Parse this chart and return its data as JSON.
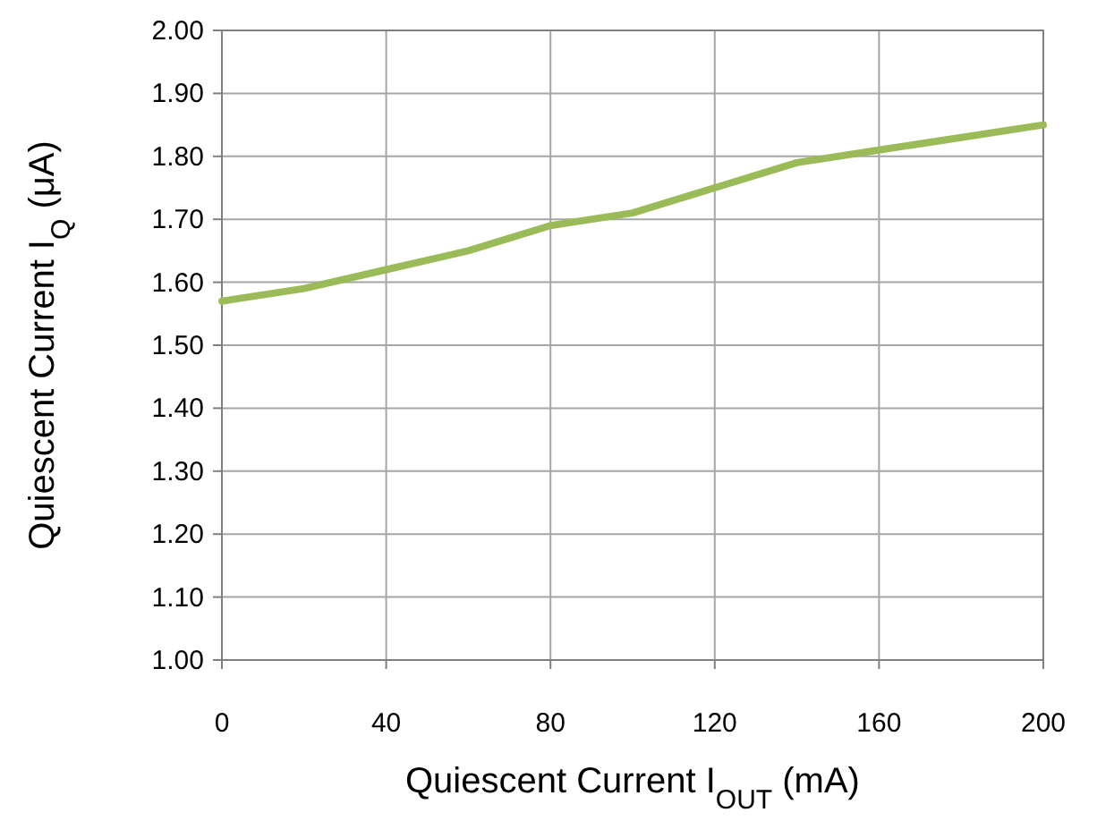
{
  "chart_data": {
    "type": "line",
    "xlabel": "Quiescent Current I$_{OUT}$ (mA)",
    "ylabel": "Quiescent Current I$_{Q}$ (μA)",
    "x": [
      0,
      20,
      40,
      60,
      80,
      100,
      120,
      140,
      160,
      180,
      200
    ],
    "series": [
      {
        "color": "#9bbb59",
        "values": [
          1.57,
          1.59,
          1.62,
          1.65,
          1.69,
          1.71,
          1.75,
          1.79,
          1.81,
          1.83,
          1.85
        ]
      }
    ],
    "xlim": [
      0,
      200
    ],
    "xticks": [
      0,
      40,
      80,
      120,
      160,
      200
    ],
    "ylim": [
      1.0,
      2.0
    ],
    "yticks": [
      {
        "value": 1.0,
        "label": "1.00"
      },
      {
        "value": 1.1,
        "label": "1.10"
      },
      {
        "value": 1.2,
        "label": "1.20"
      },
      {
        "value": 1.3,
        "label": "1.30"
      },
      {
        "value": 1.4,
        "label": "1.40"
      },
      {
        "value": 1.5,
        "label": "1.50"
      },
      {
        "value": 1.6,
        "label": "1.60"
      },
      {
        "value": 1.7,
        "label": "1.70"
      },
      {
        "value": 1.8,
        "label": "1.80"
      },
      {
        "value": 1.9,
        "label": "1.90"
      },
      {
        "value": 2.0,
        "label": "2.00"
      }
    ],
    "grid": true,
    "marker": "none",
    "line_style": "solid"
  }
}
